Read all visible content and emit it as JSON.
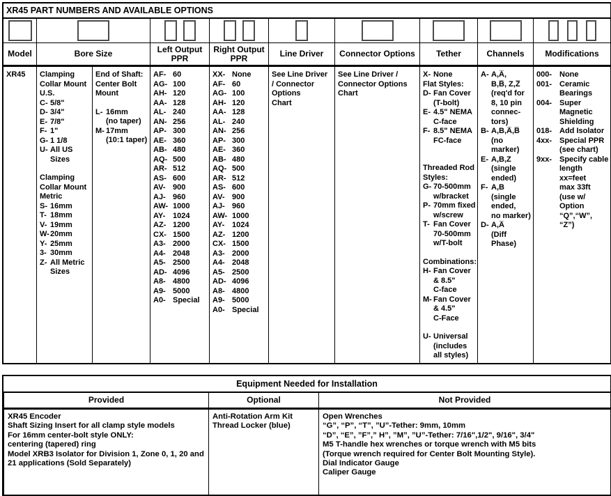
{
  "page": {
    "title": "XR45 PART NUMBERS AND AVAILABLE OPTIONS"
  },
  "parts_table": {
    "columns": [
      {
        "label": "Model",
        "boxes": 1
      },
      {
        "label": "Bore Size",
        "boxes": 1
      },
      {
        "label": "Left Output PPR",
        "boxes": 2
      },
      {
        "label": "Right Output PPR",
        "boxes": 2
      },
      {
        "label": "Line Driver",
        "boxes": 1
      },
      {
        "label": "Connector Options",
        "boxes": 1
      },
      {
        "label": "Tether",
        "boxes": 1
      },
      {
        "label": "Channels",
        "boxes": 1
      },
      {
        "label": "Modifications",
        "boxes": 3
      }
    ],
    "model": "XR45",
    "bore_us": [
      {
        "header": "Clamping\nCollar Mount\nU.S."
      },
      {
        "code": "C-",
        "text": "5/8\""
      },
      {
        "code": "D-",
        "text": "3/4\""
      },
      {
        "code": "E-",
        "text": "7/8\""
      },
      {
        "code": "F-",
        "text": "1\""
      },
      {
        "code": "G-",
        "text": "1 1/8"
      },
      {
        "code": "U-",
        "text": "All US Sizes"
      },
      {
        "spacer": true
      },
      {
        "header": "Clamping\nCollar Mount\nMetric"
      },
      {
        "code": "S-",
        "text": "16mm"
      },
      {
        "code": "T-",
        "text": "18mm"
      },
      {
        "code": "V-",
        "text": "19mm"
      },
      {
        "code": "W-",
        "text": "20mm"
      },
      {
        "code": "Y-",
        "text": "25mm"
      },
      {
        "code": "3-",
        "text": "30mm"
      },
      {
        "code": "Z-",
        "text": "All Metric\nSizes"
      }
    ],
    "bore_shaft": [
      {
        "header": "End of Shaft:\nCenter Bolt\nMount"
      },
      {
        "spacer": true
      },
      {
        "code": "L-",
        "text": "16mm\n(no taper)"
      },
      {
        "code": "M-",
        "text": "17mm\n(10:1 taper)"
      }
    ],
    "left_ppr": [
      {
        "code": "AF-",
        "text": "60"
      },
      {
        "code": "AG-",
        "text": "100"
      },
      {
        "code": "AH-",
        "text": "120"
      },
      {
        "code": "AA-",
        "text": "128"
      },
      {
        "code": "AL-",
        "text": "240"
      },
      {
        "code": "AN-",
        "text": "256"
      },
      {
        "code": "AP-",
        "text": "300"
      },
      {
        "code": "AE-",
        "text": "360"
      },
      {
        "code": "AB-",
        "text": "480"
      },
      {
        "code": "AQ-",
        "text": "500"
      },
      {
        "code": "AR-",
        "text": "512"
      },
      {
        "code": "AS-",
        "text": "600"
      },
      {
        "code": "AV-",
        "text": "900"
      },
      {
        "code": "AJ-",
        "text": "960"
      },
      {
        "code": "AW-",
        "text": "1000"
      },
      {
        "code": "AY-",
        "text": "1024"
      },
      {
        "code": "AZ-",
        "text": "1200"
      },
      {
        "code": "CX-",
        "text": "1500"
      },
      {
        "code": "A3-",
        "text": "2000"
      },
      {
        "code": "A4-",
        "text": "2048"
      },
      {
        "code": "A5-",
        "text": "2500"
      },
      {
        "code": "AD-",
        "text": "4096"
      },
      {
        "code": "A8-",
        "text": "4800"
      },
      {
        "code": "A9-",
        "text": "5000"
      },
      {
        "code": "A0-",
        "text": "Special"
      }
    ],
    "right_ppr": [
      {
        "code": "XX-",
        "text": "None"
      },
      {
        "code": "AF-",
        "text": "60"
      },
      {
        "code": "AG-",
        "text": "100"
      },
      {
        "code": "AH-",
        "text": "120"
      },
      {
        "code": "AA-",
        "text": "128"
      },
      {
        "code": "AL-",
        "text": "240"
      },
      {
        "code": "AN-",
        "text": "256"
      },
      {
        "code": "AP-",
        "text": "300"
      },
      {
        "code": "AE-",
        "text": "360"
      },
      {
        "code": "AB-",
        "text": "480"
      },
      {
        "code": "AQ-",
        "text": "500"
      },
      {
        "code": "AR-",
        "text": "512"
      },
      {
        "code": "AS-",
        "text": "600"
      },
      {
        "code": "AV-",
        "text": "900"
      },
      {
        "code": "AJ-",
        "text": "960"
      },
      {
        "code": "AW-",
        "text": "1000"
      },
      {
        "code": "AY-",
        "text": "1024"
      },
      {
        "code": "AZ-",
        "text": "1200"
      },
      {
        "code": "CX-",
        "text": "1500"
      },
      {
        "code": "A3-",
        "text": "2000"
      },
      {
        "code": "A4-",
        "text": "2048"
      },
      {
        "code": "A5-",
        "text": "2500"
      },
      {
        "code": "AD-",
        "text": "4096"
      },
      {
        "code": "A8-",
        "text": "4800"
      },
      {
        "code": "A9-",
        "text": "5000"
      },
      {
        "code": "A0-",
        "text": "Special"
      }
    ],
    "line_driver": [
      "See Line Driver",
      "/ Connector",
      "Options",
      "Chart"
    ],
    "connector_options": [
      "See Line Driver /",
      "Connector Options",
      "Chart"
    ],
    "tether": [
      {
        "code": "X-",
        "text": "None"
      },
      {
        "header": "Flat Styles:"
      },
      {
        "code": "D-",
        "text": "Fan Cover\n(T-bolt)"
      },
      {
        "code": "E-",
        "text": "4.5\" NEMA\nC-face"
      },
      {
        "code": "F-",
        "text": "8.5\" NEMA\nFC-face"
      },
      {
        "spacer": true
      },
      {
        "spacer": true
      },
      {
        "header": "Threaded Rod\nStyles:"
      },
      {
        "code": "G-",
        "text": "70-500mm\nw/bracket"
      },
      {
        "code": "P-",
        "text": "70mm fixed\nw/screw"
      },
      {
        "code": "T-",
        "text": "Fan Cover\n70-500mm\nw/T-bolt"
      },
      {
        "spacer": true
      },
      {
        "header": "Combinations:"
      },
      {
        "code": "H-",
        "text": "Fan Cover\n& 8.5\"\nC-face"
      },
      {
        "code": "M-",
        "text": "Fan Cover\n& 4.5\"\nC-Face"
      },
      {
        "spacer": true
      },
      {
        "code": "U-",
        "text": "Universal\n(includes\nall styles)"
      }
    ],
    "channels": [
      {
        "code": "A-",
        "text": "A,A̅,\nB,B̅, Z,Z̅\n(req'd for\n8, 10 pin\nconnec-\ntors)"
      },
      {
        "code": "B-",
        "text": "A,B,A̅,B̅\n(no marker)"
      },
      {
        "code": "E-",
        "text": "A,B,Z\n(single\nended)"
      },
      {
        "code": "F-",
        "text": "A,B\n(single\nended,\nno marker)"
      },
      {
        "code": "D-",
        "text": "A,A̅\n(Diff\nPhase)"
      }
    ],
    "modifications": [
      {
        "code": "000-",
        "text": "None"
      },
      {
        "code": "001-",
        "text": "Ceramic\nBearings"
      },
      {
        "code": "004-",
        "text": "Super\nMagnetic\nShielding"
      },
      {
        "code": "018-",
        "text": "Add Isolator"
      },
      {
        "code": "4xx-",
        "text": "Special PPR\n(see chart)"
      },
      {
        "code": "9xx-",
        "text": "Specify cable\nlength xx=feet\nmax 33ft\n(use w/\nOption\n“Q”,“W”, “Z”)"
      }
    ]
  },
  "equipment_table": {
    "title": "Equipment Needed for Installation",
    "headers": [
      "Provided",
      "Optional",
      "Not Provided"
    ],
    "provided": [
      "XR45 Encoder",
      "Shaft Sizing Insert for all clamp style models",
      "For 16mm center-bolt style ONLY:",
      "centering (tapered) ring",
      "Model XRB3 Isolator for Division 1, Zone 0, 1, 20 and\n21 applications (Sold Separately)"
    ],
    "optional": [
      "Anti-Rotation Arm Kit",
      "Thread Locker (blue)"
    ],
    "not_provided": [
      "Open Wrenches",
      "“G”, “P”, “T”, ”U”-Tether: 9mm, 10mm",
      "“D”, “E”, ”F”,” H”, ”M”, ”U”-Tether: 7/16\",1/2\", 9/16\", 3/4\"",
      "M5 T-handle hex wrenches or torque wrench with M5 bits",
      "(Torque wrench required for Center Bolt Mounting Style).",
      "Dial Indicator Gauge",
      "Caliper Gauge"
    ]
  }
}
